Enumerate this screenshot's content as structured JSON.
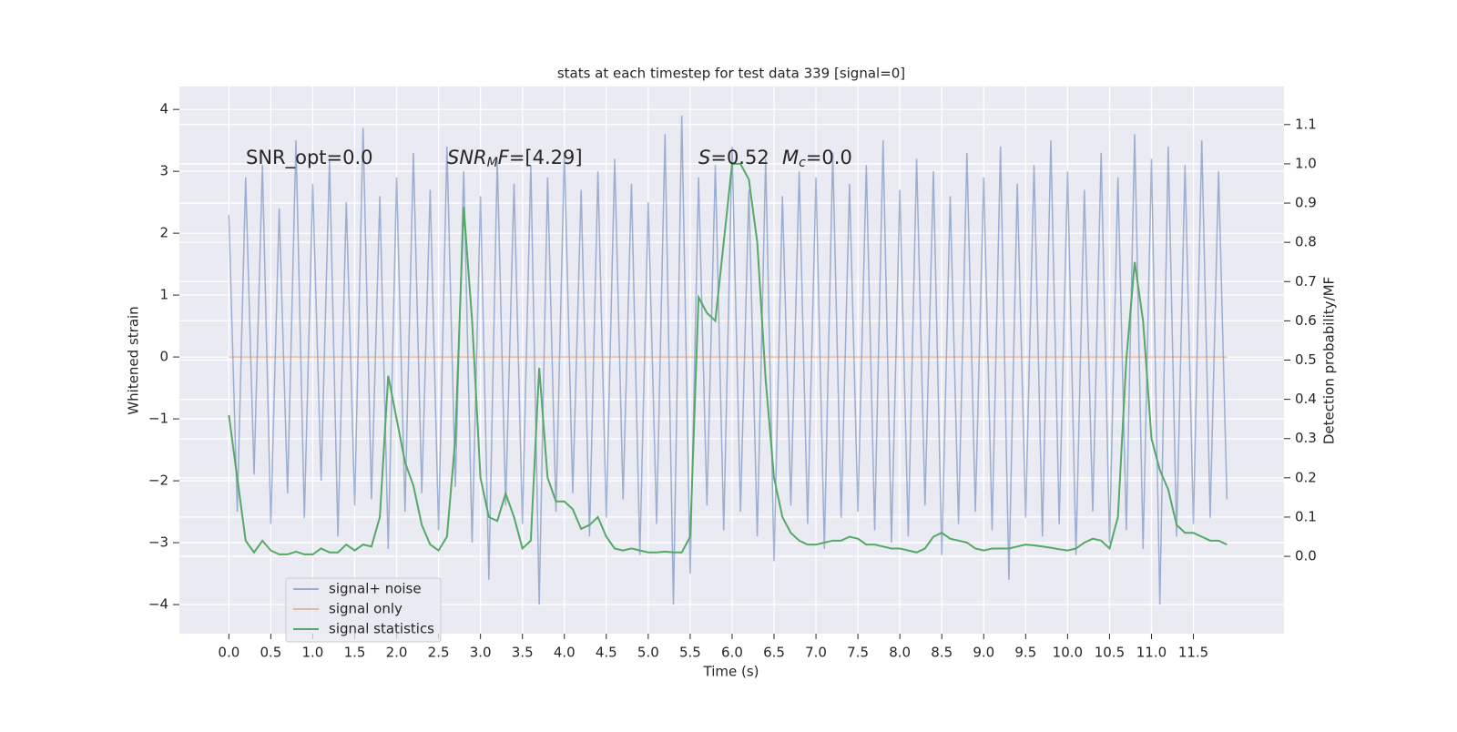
{
  "chart_data": {
    "type": "line",
    "title": "stats at each timestep for test data 339 [signal=0]",
    "x_label": "Time (s)",
    "y_label": "Whitened strain",
    "y2_label": "Detection probability/MF",
    "annotations": {
      "snr_opt": "SNR_opt=0.0",
      "snr_mf": [
        "SNR",
        "M",
        "F",
        "=[4.29]"
      ],
      "s": [
        "S",
        "=0.52"
      ],
      "mc": [
        "M",
        "c",
        "=0.0"
      ]
    },
    "x": [
      0,
      0.1,
      0.2,
      0.3,
      0.4,
      0.5,
      0.6,
      0.7,
      0.8,
      0.9,
      1,
      1.1,
      1.2,
      1.3,
      1.4,
      1.5,
      1.6,
      1.7,
      1.8,
      1.9,
      2,
      2.1,
      2.2,
      2.3,
      2.4,
      2.5,
      2.6,
      2.7,
      2.8,
      2.9,
      3,
      3.1,
      3.2,
      3.3,
      3.4,
      3.5,
      3.6,
      3.7,
      3.8,
      3.9,
      4,
      4.1,
      4.2,
      4.3,
      4.4,
      4.5,
      4.6,
      4.7,
      4.8,
      4.9,
      5,
      5.1,
      5.2,
      5.3,
      5.4,
      5.5,
      5.6,
      5.7,
      5.8,
      5.9,
      6,
      6.1,
      6.2,
      6.3,
      6.4,
      6.5,
      6.6,
      6.7,
      6.8,
      6.9,
      7,
      7.1,
      7.2,
      7.3,
      7.4,
      7.5,
      7.6,
      7.7,
      7.8,
      7.9,
      8,
      8.1,
      8.2,
      8.3,
      8.4,
      8.5,
      8.6,
      8.7,
      8.8,
      8.9,
      9,
      9.1,
      9.2,
      9.3,
      9.4,
      9.5,
      9.6,
      9.7,
      9.8,
      9.9,
      10,
      10.1,
      10.2,
      10.3,
      10.4,
      10.5,
      10.6,
      10.7,
      10.8,
      10.9,
      11,
      11.1,
      11.2,
      11.3,
      11.4,
      11.5,
      11.6,
      11.7,
      11.8,
      11.9
    ],
    "series": [
      {
        "name": "signal+ noise",
        "color": "#4c72b0",
        "opacity": 0.5,
        "values": [
          2.3,
          -2.5,
          2.9,
          -1.9,
          3.1,
          -2.7,
          2.4,
          -2.2,
          3.5,
          -2.6,
          2.8,
          -2.0,
          3.2,
          -2.9,
          2.5,
          -2.4,
          3.7,
          -2.3,
          2.6,
          -3.1,
          2.9,
          -2.5,
          3.3,
          -2.2,
          2.7,
          -2.8,
          3.4,
          -2.1,
          3.0,
          -3.0,
          2.6,
          -3.6,
          3.2,
          -2.4,
          2.8,
          -2.7,
          3.1,
          -4.0,
          2.9,
          -2.5,
          3.3,
          -2.2,
          2.7,
          -2.9,
          3.0,
          -2.6,
          3.2,
          -2.3,
          2.8,
          -3.2,
          2.5,
          -2.7,
          3.6,
          -4.0,
          3.9,
          -3.5,
          2.9,
          -2.4,
          3.1,
          -2.8,
          3.4,
          -2.5,
          2.7,
          -2.9,
          3.2,
          -3.3,
          2.6,
          -2.4,
          3.0,
          -2.7,
          2.9,
          -3.1,
          3.3,
          -2.6,
          2.8,
          -2.5,
          3.1,
          -2.8,
          3.5,
          -3.0,
          2.7,
          -2.9,
          3.2,
          -2.4,
          3.0,
          -3.2,
          2.6,
          -2.7,
          3.3,
          -2.5,
          2.9,
          -2.8,
          3.4,
          -3.6,
          2.8,
          -2.6,
          3.1,
          -2.9,
          3.5,
          -2.7,
          3.0,
          -3.2,
          2.7,
          -2.5,
          3.3,
          -3.0,
          2.9,
          -2.8,
          3.6,
          -3.1,
          3.2,
          -4.0,
          3.4,
          -2.9,
          3.1,
          -2.7,
          3.5,
          -2.6,
          3.0,
          -2.3
        ]
      },
      {
        "name": "signal only",
        "color": "#dd8452",
        "opacity": 0.5,
        "values": [
          0,
          0,
          0,
          0,
          0,
          0,
          0,
          0,
          0,
          0,
          0,
          0,
          0,
          0,
          0,
          0,
          0,
          0,
          0,
          0,
          0,
          0,
          0,
          0,
          0,
          0,
          0,
          0,
          0,
          0,
          0,
          0,
          0,
          0,
          0,
          0,
          0,
          0,
          0,
          0,
          0,
          0,
          0,
          0,
          0,
          0,
          0,
          0,
          0,
          0,
          0,
          0,
          0,
          0,
          0,
          0,
          0,
          0,
          0,
          0,
          0,
          0,
          0,
          0,
          0,
          0,
          0,
          0,
          0,
          0,
          0,
          0,
          0,
          0,
          0,
          0,
          0,
          0,
          0,
          0,
          0,
          0,
          0,
          0,
          0,
          0,
          0,
          0,
          0,
          0,
          0,
          0,
          0,
          0,
          0,
          0,
          0,
          0,
          0,
          0,
          0,
          0,
          0,
          0,
          0,
          0,
          0,
          0,
          0,
          0,
          0,
          0,
          0,
          0,
          0,
          0,
          0,
          0,
          0,
          0
        ]
      },
      {
        "name": "signal statistics",
        "color": "#55a868",
        "opacity": 1,
        "axis": "y2",
        "values": [
          0.36,
          0.2,
          0.04,
          0.01,
          0.04,
          0.015,
          0.005,
          0.005,
          0.012,
          0.005,
          0.005,
          0.02,
          0.01,
          0.01,
          0.03,
          0.015,
          0.03,
          0.025,
          0.1,
          0.46,
          0.35,
          0.24,
          0.18,
          0.08,
          0.03,
          0.015,
          0.05,
          0.3,
          0.89,
          0.6,
          0.2,
          0.1,
          0.09,
          0.16,
          0.1,
          0.02,
          0.04,
          0.48,
          0.2,
          0.14,
          0.14,
          0.12,
          0.07,
          0.08,
          0.1,
          0.05,
          0.02,
          0.015,
          0.02,
          0.015,
          0.01,
          0.01,
          0.012,
          0.01,
          0.01,
          0.05,
          0.66,
          0.62,
          0.6,
          0.8,
          1.0,
          1.0,
          0.96,
          0.8,
          0.45,
          0.2,
          0.1,
          0.06,
          0.04,
          0.03,
          0.03,
          0.035,
          0.04,
          0.04,
          0.05,
          0.045,
          0.03,
          0.03,
          0.025,
          0.02,
          0.02,
          0.015,
          0.01,
          0.02,
          0.05,
          0.06,
          0.045,
          0.04,
          0.035,
          0.02,
          0.015,
          0.02,
          0.02,
          0.02,
          0.025,
          0.03,
          0.028,
          0.025,
          0.022,
          0.018,
          0.015,
          0.02,
          0.035,
          0.045,
          0.04,
          0.02,
          0.1,
          0.5,
          0.75,
          0.6,
          0.3,
          0.22,
          0.17,
          0.08,
          0.06,
          0.06,
          0.05,
          0.04,
          0.04,
          0.03
        ]
      }
    ],
    "xlim": [
      -0.59,
      12.58
    ],
    "xticks": [
      {
        "value": 0,
        "label": "0.0"
      },
      0.5,
      {
        "value": 1,
        "label": "1.0"
      },
      1.5,
      {
        "value": 2,
        "label": "2.0"
      },
      2.5,
      {
        "value": 3,
        "label": "3.0"
      },
      3.5,
      {
        "value": 4,
        "label": "4.0"
      },
      4.5,
      {
        "value": 5,
        "label": "5.0"
      },
      5.5,
      {
        "value": 6,
        "label": "6.0"
      },
      6.5,
      {
        "value": 7,
        "label": "7.0"
      },
      7.5,
      {
        "value": 8,
        "label": "8.0"
      },
      8.5,
      {
        "value": 9,
        "label": "9.0"
      },
      9.5,
      {
        "value": 10,
        "label": "10.0"
      },
      10.5,
      {
        "value": 11,
        "label": "11.0"
      },
      11.5
    ],
    "ylim": [
      -4.47,
      4.37
    ],
    "yticks": [
      {
        "value": -4,
        "label": "−4"
      },
      {
        "value": -3,
        "label": "−3"
      },
      {
        "value": -2,
        "label": "−2"
      },
      {
        "value": -1,
        "label": "−1"
      },
      0,
      1,
      2,
      3,
      4
    ],
    "y2lim": [
      -0.197,
      1.197
    ],
    "y2ticks": [
      {
        "value": 0,
        "label": "0.0"
      },
      0.1,
      0.2,
      0.3,
      0.4,
      0.5,
      0.6,
      0.7,
      0.8,
      0.9,
      {
        "value": 1,
        "label": "1.0"
      },
      1.1
    ],
    "grid": true,
    "legend": "lower left"
  }
}
